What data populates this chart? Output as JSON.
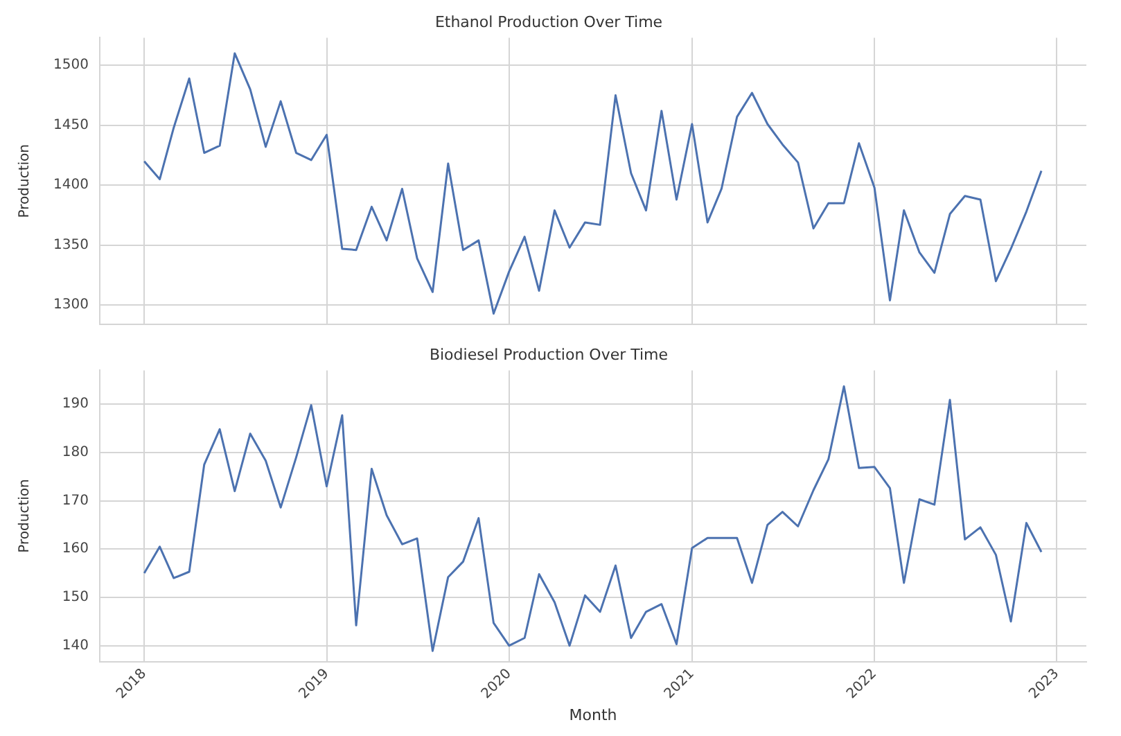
{
  "chart_data": [
    {
      "type": "line",
      "title": "Ethanol Production Over Time",
      "ylabel": "Production",
      "x": [
        "2018-01",
        "2018-02",
        "2018-03",
        "2018-04",
        "2018-05",
        "2018-06",
        "2018-07",
        "2018-08",
        "2018-09",
        "2018-10",
        "2018-11",
        "2018-12",
        "2019-01",
        "2019-02",
        "2019-03",
        "2019-04",
        "2019-05",
        "2019-06",
        "2019-07",
        "2019-08",
        "2019-09",
        "2019-10",
        "2019-11",
        "2019-12",
        "2020-01",
        "2020-02",
        "2020-03",
        "2020-04",
        "2020-05",
        "2020-06",
        "2020-07",
        "2020-08",
        "2020-09",
        "2020-10",
        "2020-11",
        "2020-12",
        "2021-01",
        "2021-02",
        "2021-03",
        "2021-04",
        "2021-05",
        "2021-06",
        "2021-07",
        "2021-08",
        "2021-09",
        "2021-10",
        "2021-11",
        "2021-12",
        "2022-01",
        "2022-02",
        "2022-03",
        "2022-04",
        "2022-05",
        "2022-06",
        "2022-07",
        "2022-08",
        "2022-09",
        "2022-10",
        "2022-11",
        "2022-12"
      ],
      "series": [
        {
          "color": "#4c72b0",
          "values": [
            1420,
            1405,
            1448,
            1489,
            1427,
            1433,
            1510,
            1480,
            1432,
            1470,
            1427,
            1421,
            1442,
            1347,
            1346,
            1382,
            1354,
            1397,
            1339,
            1311,
            1418,
            1346,
            1354,
            1293,
            1328,
            1357,
            1312,
            1379,
            1348,
            1369,
            1367,
            1475,
            1410,
            1379,
            1462,
            1388,
            1451,
            1369,
            1397,
            1457,
            1477,
            1451,
            1434,
            1419,
            1364,
            1385,
            1385,
            1435,
            1398,
            1304,
            1379,
            1344,
            1327,
            1376,
            1391,
            1388,
            1320,
            1347,
            1378,
            1412
          ]
        }
      ],
      "xlim": [
        "2017-10-04",
        "2023-03-01"
      ],
      "xticks": [
        "2018",
        "2019",
        "2020",
        "2021",
        "2022",
        "2023"
      ],
      "ylim": [
        1284,
        1523
      ],
      "yticks": [
        1300,
        1350,
        1400,
        1450,
        1500
      ],
      "grid": true,
      "tick_labels": "y"
    },
    {
      "type": "line",
      "title": "Biodiesel Production Over Time",
      "xlabel": "Month",
      "ylabel": "Production",
      "x": [
        "2018-01",
        "2018-02",
        "2018-03",
        "2018-04",
        "2018-05",
        "2018-06",
        "2018-07",
        "2018-08",
        "2018-09",
        "2018-10",
        "2018-11",
        "2018-12",
        "2019-01",
        "2019-02",
        "2019-03",
        "2019-04",
        "2019-05",
        "2019-06",
        "2019-07",
        "2019-08",
        "2019-09",
        "2019-10",
        "2019-11",
        "2019-12",
        "2020-01",
        "2020-02",
        "2020-03",
        "2020-04",
        "2020-05",
        "2020-06",
        "2020-07",
        "2020-08",
        "2020-09",
        "2020-10",
        "2020-11",
        "2020-12",
        "2021-01",
        "2021-02",
        "2021-03",
        "2021-04",
        "2021-05",
        "2021-06",
        "2021-07",
        "2021-08",
        "2021-09",
        "2021-10",
        "2021-11",
        "2021-12",
        "2022-01",
        "2022-02",
        "2022-03",
        "2022-04",
        "2022-05",
        "2022-06",
        "2022-07",
        "2022-08",
        "2022-09",
        "2022-10",
        "2022-11",
        "2022-12"
      ],
      "series": [
        {
          "color": "#4c72b0",
          "values": [
            155,
            160.5,
            154,
            155.3,
            177.5,
            184.8,
            172,
            183.9,
            178.3,
            168.6,
            179,
            189.8,
            173,
            187.7,
            144.2,
            176.6,
            167,
            161,
            162.2,
            138.9,
            154.2,
            157.4,
            166.4,
            144.7,
            140,
            141.6,
            154.8,
            149,
            140,
            150.4,
            147,
            156.6,
            141.6,
            147,
            148.6,
            140.3,
            160.2,
            162.3,
            162.3,
            162.3,
            153,
            165,
            167.7,
            164.7,
            172.2,
            178.6,
            193.7,
            176.8,
            177,
            172.6,
            153,
            170.3,
            169.2,
            190.9,
            162,
            164.5,
            158.8,
            145,
            165.4,
            159.4
          ]
        }
      ],
      "xlim": [
        "2017-10-04",
        "2023-03-01"
      ],
      "xticks": [
        "2018",
        "2019",
        "2020",
        "2021",
        "2022",
        "2023"
      ],
      "ylim": [
        136.7,
        197
      ],
      "yticks": [
        140,
        150,
        160,
        170,
        180,
        190
      ],
      "grid": true
    }
  ]
}
